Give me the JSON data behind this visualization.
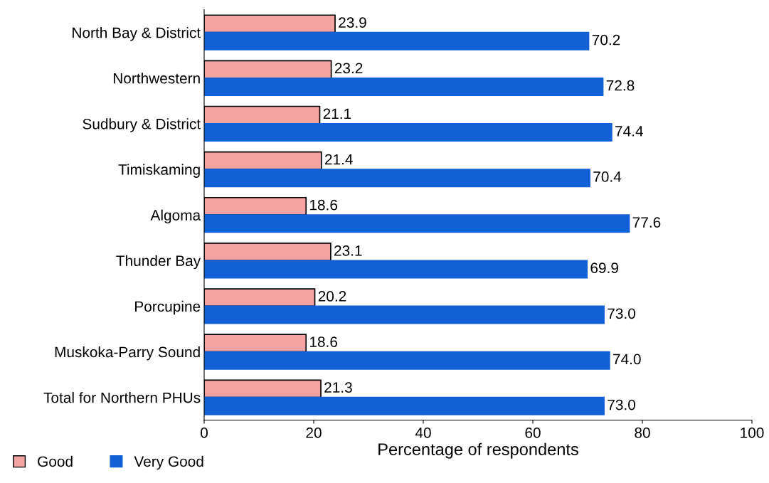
{
  "chart_data": {
    "type": "bar",
    "orientation": "horizontal",
    "xlabel": "Percentage of respondents",
    "categories": [
      "North Bay & District",
      "Northwestern",
      "Sudbury & District",
      "Timiskaming",
      "Algoma",
      "Thunder Bay",
      "Porcupine",
      "Muskoka-Parry Sound",
      "Total for Northern PHUs"
    ],
    "series": [
      {
        "name": "Good",
        "color": "#f4a3a3",
        "values": [
          23.9,
          23.2,
          21.1,
          21.4,
          18.6,
          23.1,
          20.2,
          18.6,
          21.3
        ],
        "value_labels": [
          "23.9",
          "23.2",
          "21.1",
          "21.4",
          "18.6",
          "23.1",
          "20.2",
          "18.6",
          "21.3"
        ]
      },
      {
        "name": "Very Good",
        "color": "#1360d6",
        "values": [
          70.2,
          72.8,
          74.4,
          70.4,
          77.6,
          69.9,
          73.0,
          74.0,
          73.0
        ],
        "value_labels": [
          "70.2",
          "72.8",
          "74.4",
          "70.4",
          "77.6",
          "69.9",
          "73.0",
          "74.0",
          "73.0"
        ]
      }
    ],
    "xlim": [
      0,
      100
    ],
    "xticks": [
      0,
      20,
      40,
      60,
      80,
      100
    ],
    "grid": false,
    "legend": "bottom left"
  }
}
